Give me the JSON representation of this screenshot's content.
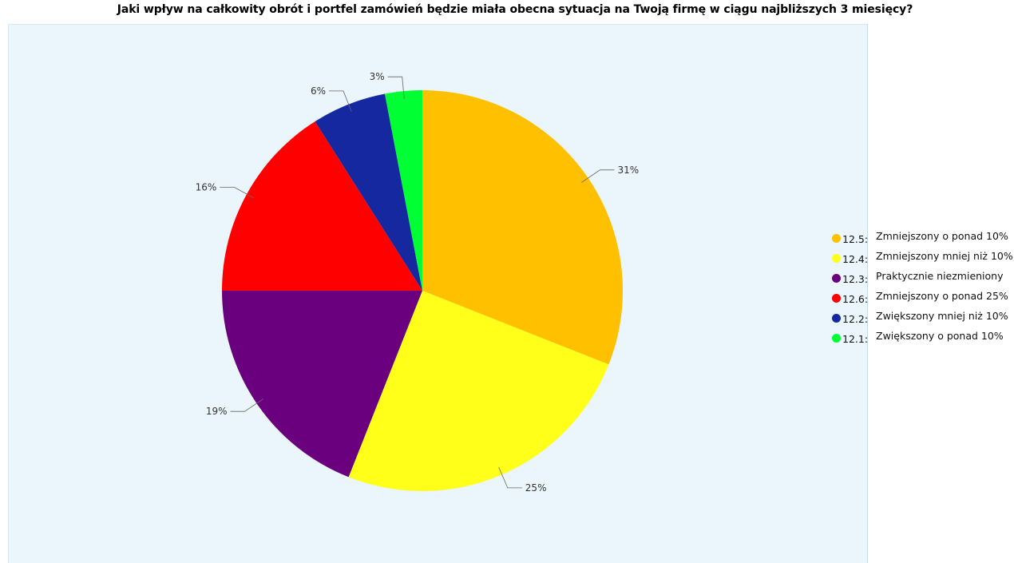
{
  "chart_data": {
    "type": "pie",
    "title": "Jaki wpływ na całkowity obrót i portfel zamówień będzie miała obecna sytuacja na Twoją firmę w ciągu najbliższych 3 miesięcy?",
    "slices": [
      {
        "code": "12.5:",
        "name": "Zmniejszony o ponad 10%",
        "value": 31,
        "label": "31%",
        "color": "#ffc000"
      },
      {
        "code": "12.4:",
        "name": "Zmniejszony mniej niż 10%",
        "value": 25,
        "label": "25%",
        "color": "#ffff1a"
      },
      {
        "code": "12.3:",
        "name": "Praktycznie niezmieniony",
        "value": 19,
        "label": "19%",
        "color": "#6b007f"
      },
      {
        "code": "12.6:",
        "name": "Zmniejszony o ponad 25%",
        "value": 16,
        "label": "16%",
        "color": "#ff0000"
      },
      {
        "code": "12.2:",
        "name": "Zwiększony mniej niż 10%",
        "value": 6,
        "label": "6%",
        "color": "#1528a0"
      },
      {
        "code": "12.1:",
        "name": "Zwiększony o ponad 10%",
        "value": 3,
        "label": "3%",
        "color": "#00ff33"
      }
    ],
    "legend_position": "right",
    "background": "#eaf5fc"
  }
}
